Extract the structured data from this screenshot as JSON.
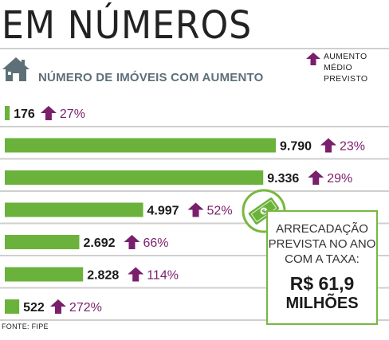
{
  "header": {
    "title": "EM NÚMEROS",
    "subtitle": "NÚMERO DE IMÓVEIS COM AUMENTO",
    "legend_label": "AUMENTO\nMÉDIO\nPREVISTO"
  },
  "colors": {
    "bar": "#6ab23b",
    "arrow": "#7a1f6b",
    "percent_text": "#7a1f6b",
    "box_border": "#76b83f",
    "gridline": "#cfcfcf",
    "subtitle": "#5e6f78"
  },
  "chart_data": {
    "type": "bar",
    "orientation": "horizontal",
    "categories": [
      "",
      "",
      "",
      "",
      "",
      "",
      ""
    ],
    "values": [
      176,
      9790,
      9336,
      4997,
      2692,
      2828,
      522
    ],
    "value_labels": [
      "176",
      "9.790",
      "9.336",
      "4.997",
      "2.692",
      "2.828",
      "522"
    ],
    "increase_labels": [
      "27%",
      "23%",
      "29%",
      "52%",
      "66%",
      "114%",
      "272%"
    ],
    "increase_values": [
      27,
      23,
      29,
      52,
      66,
      114,
      272
    ],
    "title": "NÚMERO DE IMÓVEIS COM AUMENTO",
    "xlim": [
      0,
      9790
    ],
    "grid": true
  },
  "callout": {
    "icon": "dollar-bill-icon",
    "label": "ARRECADAÇÃO\nPREVISTA NO ANO\nCOM A TAXA:",
    "value": "R$ 61,9",
    "unit": "MILHÕES"
  },
  "footer": {
    "source": "FONTE: FIPE"
  }
}
